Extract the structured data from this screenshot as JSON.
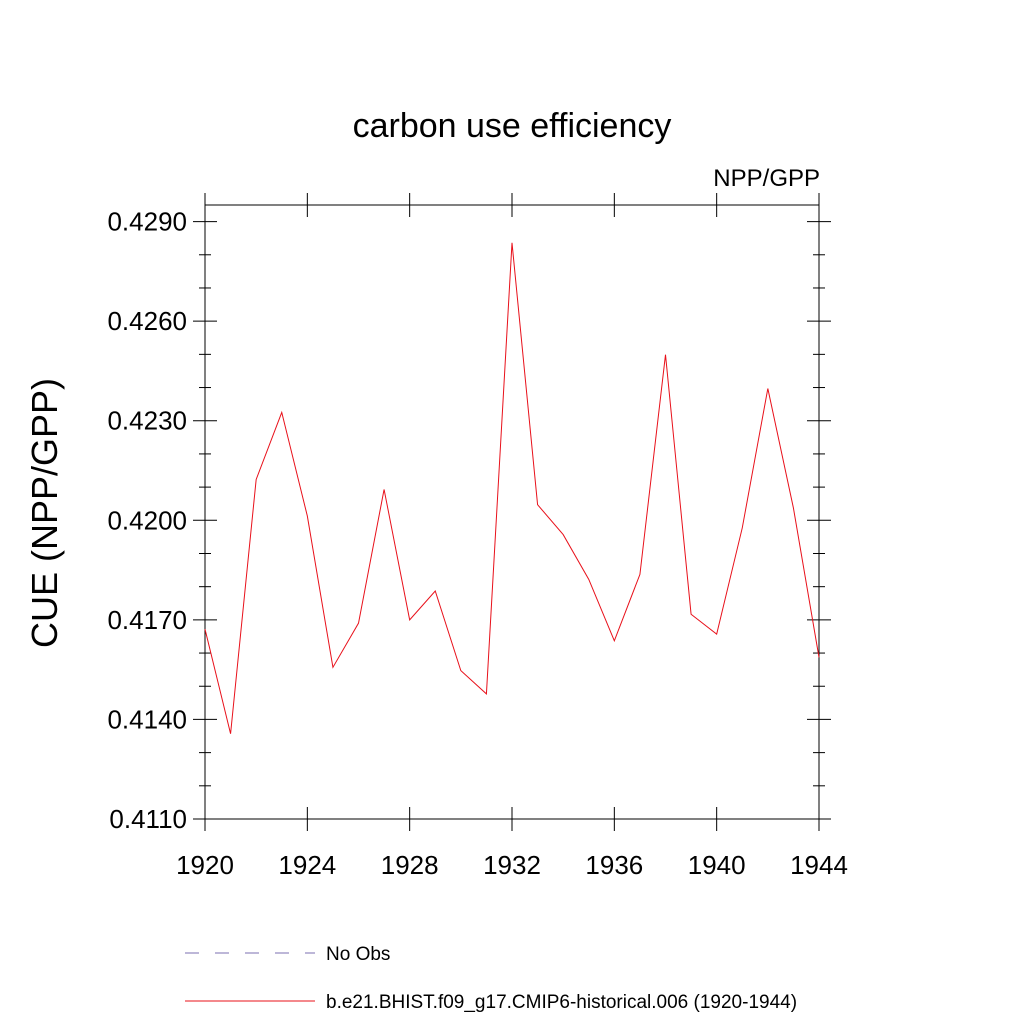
{
  "chart_data": {
    "type": "line",
    "title": "carbon use efficiency",
    "subtitle": "NPP/GPP",
    "xlabel": "",
    "ylabel": "CUE  (NPP/GPP)",
    "xlim": [
      1920,
      1944
    ],
    "ylim": [
      0.411,
      0.4295
    ],
    "x_ticks": [
      1920,
      1924,
      1928,
      1932,
      1936,
      1940,
      1944
    ],
    "x_tick_labels": [
      "1920",
      "1924",
      "1928",
      "1932",
      "1936",
      "1940",
      "1944"
    ],
    "y_ticks": [
      0.411,
      0.414,
      0.417,
      0.42,
      0.423,
      0.426,
      0.429
    ],
    "y_tick_labels": [
      "0.4110",
      "0.4140",
      "0.4170",
      "0.4200",
      "0.4230",
      "0.4260",
      "0.4290"
    ],
    "grid": false,
    "legend_position": "bottom",
    "series": [
      {
        "name": "b.e21.BHIST.f09_g17.CMIP6-historical.006 (1920-1944)",
        "color": "#e8101a",
        "line_style": "solid",
        "x": [
          1920,
          1921,
          1922,
          1923,
          1924,
          1925,
          1926,
          1927,
          1928,
          1929,
          1930,
          1931,
          1932,
          1933,
          1934,
          1935,
          1936,
          1937,
          1938,
          1939,
          1940,
          1941,
          1942,
          1943,
          1944
        ],
        "y": [
          0.41672,
          0.41357,
          0.42123,
          0.42325,
          0.42013,
          0.41557,
          0.4169,
          0.42093,
          0.417,
          0.41787,
          0.41547,
          0.41477,
          0.42836,
          0.42047,
          0.41957,
          0.41822,
          0.41637,
          0.41837,
          0.42499,
          0.41717,
          0.41657,
          0.41977,
          0.42397,
          0.42037,
          0.41587
        ]
      }
    ],
    "legend": [
      {
        "label": "No Obs",
        "color": "#7b6fb0",
        "line_style": "dashed"
      },
      {
        "label": "b.e21.BHIST.f09_g17.CMIP6-historical.006 (1920-1944)",
        "color": "#e8101a",
        "line_style": "solid"
      }
    ]
  }
}
